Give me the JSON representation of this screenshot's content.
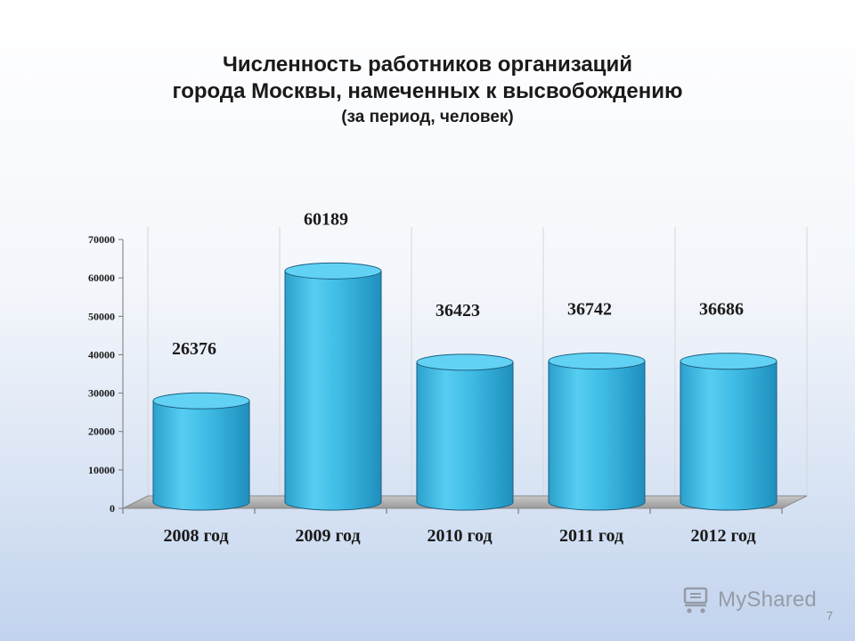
{
  "slide": {
    "title_line1": "Численность работников организаций",
    "title_line2": "города Москвы, намеченных к высвобождению",
    "subtitle": "(за период, человек)",
    "page_number": "7"
  },
  "watermark": {
    "text": "MyShared",
    "icon": "shopping-cart-icon"
  },
  "chart_data": {
    "type": "bar",
    "style": "3d-cylinder",
    "categories": [
      "2008 год",
      "2009 год",
      "2010 год",
      "2011 год",
      "2012 год"
    ],
    "values": [
      26376,
      60189,
      36423,
      36742,
      36686
    ],
    "data_labels": [
      "26376",
      "60189",
      "36423",
      "36742",
      "36686"
    ],
    "yticks": [
      "0",
      "10000",
      "20000",
      "30000",
      "40000",
      "50000",
      "60000",
      "70000"
    ],
    "ylim": [
      0,
      70000
    ],
    "grid": "vertical-lines",
    "legend": "none",
    "colors": {
      "bar": "#3bb8e0",
      "bar_top": "#62d2f4",
      "bar_edge": "#1d5f80"
    }
  }
}
